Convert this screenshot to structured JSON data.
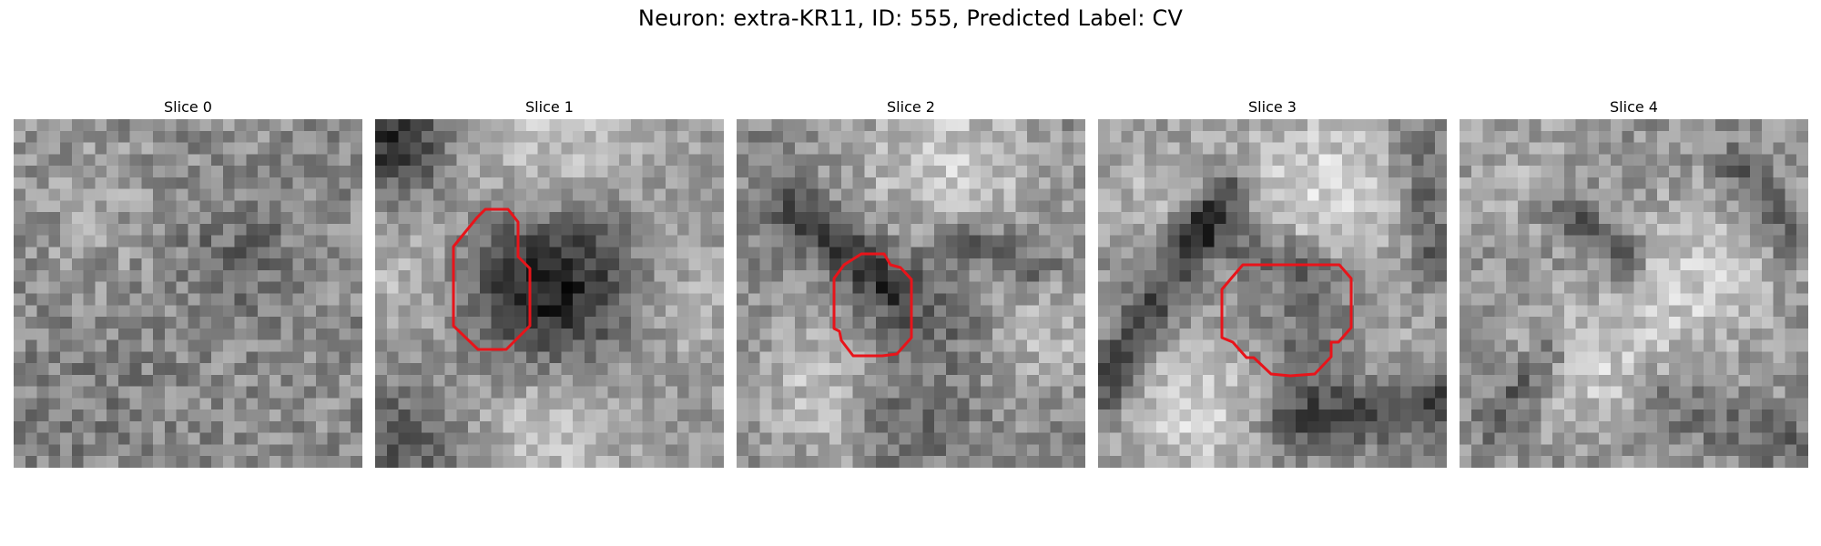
{
  "figure": {
    "title": "Neuron: extra-KR11, ID: 555, Predicted Label: CV"
  },
  "colors": {
    "contour": "#e8141a",
    "background": "#ffffff"
  },
  "panels": [
    {
      "title": "Slice 0",
      "has_contour": false
    },
    {
      "title": "Slice 1",
      "has_contour": true
    },
    {
      "title": "Slice 2",
      "has_contour": true
    },
    {
      "title": "Slice 3",
      "has_contour": true
    },
    {
      "title": "Slice 4",
      "has_contour": false
    }
  ]
}
